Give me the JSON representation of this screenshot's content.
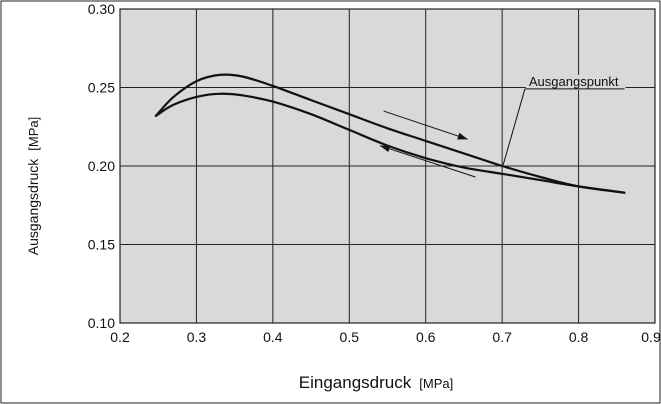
{
  "chart_data": {
    "type": "line",
    "xlabel": "Eingangsdruck",
    "xunit": "[MPa]",
    "ylabel": "Ausgangsdruck",
    "yunit": "[MPa]",
    "xlim": [
      0.2,
      0.9
    ],
    "ylim": [
      0.1,
      0.3
    ],
    "xticks": [
      "0.2",
      "0.3",
      "0.4",
      "0.5",
      "0.6",
      "0.7",
      "0.8",
      "0.9"
    ],
    "yticks": [
      "0.10",
      "0.15",
      "0.20",
      "0.25",
      "0.30"
    ],
    "grid": true,
    "background": "#d9d9d9",
    "series": [
      {
        "name": "",
        "points": [
          [
            0.247,
            0.232
          ],
          [
            0.27,
            0.244
          ],
          [
            0.3,
            0.254
          ],
          [
            0.33,
            0.258
          ],
          [
            0.36,
            0.257
          ],
          [
            0.4,
            0.251
          ],
          [
            0.45,
            0.242
          ],
          [
            0.5,
            0.233
          ],
          [
            0.55,
            0.224
          ],
          [
            0.6,
            0.216
          ],
          [
            0.65,
            0.208
          ],
          [
            0.7,
            0.2
          ],
          [
            0.75,
            0.193
          ],
          [
            0.8,
            0.187
          ],
          [
            0.86,
            0.183
          ]
        ]
      },
      {
        "name": "",
        "points": [
          [
            0.247,
            0.232
          ],
          [
            0.27,
            0.239
          ],
          [
            0.3,
            0.244
          ],
          [
            0.33,
            0.246
          ],
          [
            0.36,
            0.245
          ],
          [
            0.4,
            0.241
          ],
          [
            0.45,
            0.233
          ],
          [
            0.5,
            0.223
          ],
          [
            0.55,
            0.213
          ],
          [
            0.6,
            0.205
          ],
          [
            0.65,
            0.199
          ],
          [
            0.7,
            0.195
          ],
          [
            0.75,
            0.191
          ],
          [
            0.8,
            0.187
          ],
          [
            0.86,
            0.183
          ]
        ]
      }
    ],
    "arrows": [
      {
        "direction": "increasing",
        "from": [
          0.545,
          0.235
        ],
        "to": [
          0.655,
          0.217
        ]
      },
      {
        "direction": "decreasing",
        "from": [
          0.665,
          0.193
        ],
        "to": [
          0.54,
          0.213
        ]
      }
    ],
    "annotations": [
      {
        "text": "Ausgangspunkt",
        "x": 0.735,
        "y": 0.251,
        "target": [
          0.7,
          0.2
        ]
      }
    ]
  }
}
